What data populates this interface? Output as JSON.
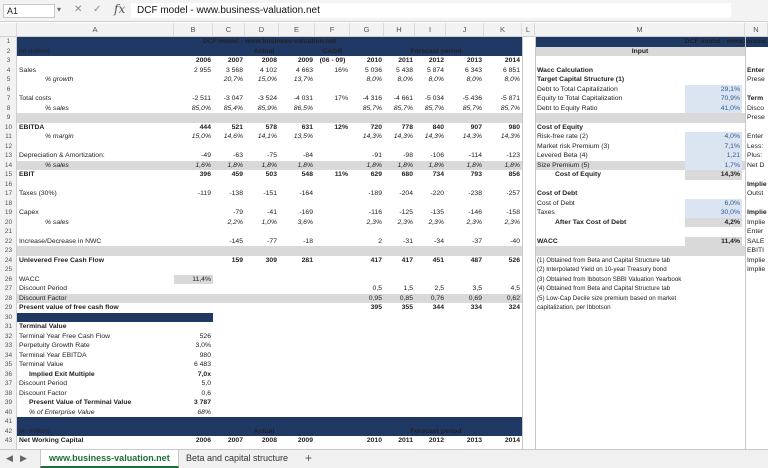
{
  "formula_bar": {
    "cell_ref": "A1",
    "formula": "DCF model - www.business-valuation.net"
  },
  "columns": [
    "A",
    "B",
    "C",
    "D",
    "E",
    "F",
    "G",
    "H",
    "I",
    "J",
    "K",
    "L",
    "M",
    "N"
  ],
  "rows": [
    "1",
    "2",
    "3",
    "4",
    "5",
    "6",
    "7",
    "8",
    "9",
    "10",
    "11",
    "12",
    "13",
    "14",
    "15",
    "16",
    "17",
    "18",
    "19",
    "20",
    "21",
    "22",
    "23",
    "24",
    "25",
    "26",
    "27",
    "28",
    "29",
    "30",
    "31",
    "32",
    "33",
    "34",
    "35",
    "36",
    "37",
    "38",
    "39",
    "40",
    "41",
    "42",
    "43"
  ],
  "header": {
    "title": "DCF model - www.business-valuation.net",
    "in_million": "(in million)",
    "actual": "Actual",
    "cagr": "CAGR",
    "cagr_range": "(06 - 09)",
    "forecast": "Forecast period",
    "years": [
      "2006",
      "2007",
      "2008",
      "2009",
      "",
      "2010",
      "2011",
      "2012",
      "2013",
      "2014"
    ]
  },
  "right_panel": {
    "title": "DCF model - www.busine",
    "input": "Input",
    "wacc_calc": "Wacc Calculation",
    "target_cap": "Target Capital Structure (1)",
    "debt_total": "Debt to Total Capitalization",
    "debt_total_v": "29,1%",
    "equity_total": "Equity to Total Capitalization",
    "equity_total_v": "70,9%",
    "debt_equity": "Debt to Equity Ratio",
    "debt_equity_v": "41,0%",
    "cost_equity": "Cost of Equity",
    "rf": "Risk-free rate (2)",
    "rf_v": "4,0%",
    "mrp": "Market risk Premium (3)",
    "mrp_v": "7,1%",
    "beta": "Levered Beta (4)",
    "beta_v": "1,21",
    "size": "Size Premium (5)",
    "size_v": "1,7%",
    "coe": "Cost of Equity",
    "coe_v": "14,3%",
    "cost_debt": "Cost of Debt",
    "cod": "Cost of Debt",
    "cod_v": "6,0%",
    "taxes": "Taxes",
    "taxes_v": "30,0%",
    "atcod": "After Tax Cost of Debt",
    "atcod_v": "4,2%",
    "wacc": "WACC",
    "wacc_v": "11,4%",
    "notes": [
      "(1) Obtained from Beta and Capital Structure tab",
      "(2) Interpolated Yield on 10-year Treasury bond",
      "(3) Obtained from Ibbotson SBBI Valuation Yearbook",
      "(4) Obtained from Beta and Capital Structure tab",
      "(5) Low-Cap Decile size premium based on market",
      "capitalization, per Ibbotson"
    ],
    "clipped": [
      "Enter",
      "Prese",
      "Term",
      "Disco",
      "Prese",
      "Enter",
      "Less:",
      "Plus:",
      "Net D",
      "Implie",
      "Outst",
      "Implie",
      "Implie",
      "Enter",
      "SALE",
      "EBITI",
      "Implie",
      "Implie"
    ]
  },
  "main_rows": [
    {
      "r": 4,
      "label": "Sales",
      "v": [
        "2 955",
        "3 568",
        "4 102",
        "4 663",
        "16%",
        "5 036",
        "5 438",
        "5 874",
        "6 343",
        "6 851"
      ]
    },
    {
      "r": 5,
      "label": "% growth",
      "ital": true,
      "v": [
        "",
        "20,7%",
        "15,0%",
        "13,7%",
        "",
        "8,0%",
        "8,0%",
        "8,0%",
        "8,0%",
        "8,0%"
      ]
    },
    {
      "r": 7,
      "label": "Total costs",
      "v": [
        "-2 511",
        "-3 047",
        "-3 524",
        "-4 031",
        "17%",
        "-4 316",
        "-4 661",
        "-5 034",
        "-5 436",
        "-5 871"
      ]
    },
    {
      "r": 8,
      "label": "% sales",
      "ital": true,
      "v": [
        "85,0%",
        "85,4%",
        "85,9%",
        "86,5%",
        "",
        "85,7%",
        "85,7%",
        "85,7%",
        "85,7%",
        "85,7%"
      ]
    },
    {
      "r": 10,
      "label": "EBITDA",
      "bold": true,
      "v": [
        "444",
        "521",
        "578",
        "631",
        "12%",
        "720",
        "778",
        "840",
        "907",
        "980"
      ]
    },
    {
      "r": 11,
      "label": "% margin",
      "ital": true,
      "v": [
        "15,0%",
        "14,6%",
        "14,1%",
        "13,5%",
        "",
        "14,3%",
        "14,3%",
        "14,3%",
        "14,3%",
        "14,3%"
      ]
    },
    {
      "r": 13,
      "label": "Depreciation & Amortization:",
      "v": [
        "-49",
        "-63",
        "-75",
        "-84",
        "",
        "-91",
        "-98",
        "-106",
        "-114",
        "-123"
      ]
    },
    {
      "r": 14,
      "label": "% sales",
      "ital": true,
      "v": [
        "1,6%",
        "1,8%",
        "1,8%",
        "1,8%",
        "",
        "1,8%",
        "1,8%",
        "1,8%",
        "1,8%",
        "1,8%"
      ]
    },
    {
      "r": 15,
      "label": "EBIT",
      "bold": true,
      "v": [
        "396",
        "459",
        "503",
        "548",
        "11%",
        "629",
        "680",
        "734",
        "793",
        "856"
      ]
    },
    {
      "r": 17,
      "label": "Taxes (30%)",
      "v": [
        "-119",
        "-138",
        "-151",
        "-164",
        "",
        "-189",
        "-204",
        "-220",
        "-238",
        "-257"
      ]
    },
    {
      "r": 19,
      "label": "Capex",
      "v": [
        "",
        "-79",
        "-41",
        "-169",
        "",
        "-116",
        "-125",
        "-135",
        "-146",
        "-158"
      ]
    },
    {
      "r": 20,
      "label": "% sales",
      "ital": true,
      "v": [
        "",
        "2,2%",
        "1,0%",
        "3,6%",
        "",
        "2,3%",
        "2,3%",
        "2,3%",
        "2,3%",
        "2,3%"
      ]
    },
    {
      "r": 22,
      "label": "Increase/Decrease in NWC",
      "v": [
        "",
        "-145",
        "-77",
        "-18",
        "",
        "2",
        "-31",
        "-34",
        "-37",
        "-40"
      ]
    },
    {
      "r": 24,
      "label": "Unlevered Free Cash Flow",
      "bold": true,
      "v": [
        "",
        "159",
        "309",
        "281",
        "",
        "417",
        "417",
        "451",
        "487",
        "526"
      ]
    },
    {
      "r": 26,
      "label": "WACC",
      "v": [
        "11,4%",
        "",
        "",
        "",
        "",
        "",
        "",
        "",
        "",
        ""
      ]
    },
    {
      "r": 27,
      "label": "Discount Period",
      "v": [
        "",
        "",
        "",
        "",
        "",
        "0,5",
        "1,5",
        "2,5",
        "3,5",
        "4,5"
      ]
    },
    {
      "r": 28,
      "label": "Discount Factor",
      "v": [
        "",
        "",
        "",
        "",
        "",
        "0,95",
        "0,85",
        "0,76",
        "0,69",
        "0,62"
      ]
    },
    {
      "r": 29,
      "label": "Present value of free cash flow",
      "bold": true,
      "v": [
        "",
        "",
        "",
        "",
        "",
        "395",
        "355",
        "344",
        "334",
        "324"
      ]
    }
  ],
  "terminal": {
    "title": "Terminal Value",
    "rows": [
      {
        "r": 32,
        "label": "Terminal Year Free Cash Flow",
        "v": "526"
      },
      {
        "r": 33,
        "label": "Perpetuity Growth Rate",
        "v": "3,0%"
      },
      {
        "r": 34,
        "label": "Terminal Year EBITDA",
        "v": "980"
      },
      {
        "r": 35,
        "label": "Terminal Value",
        "v": "6 483"
      },
      {
        "r": 36,
        "label": "Implied Exit Multiple",
        "v": "7,0x",
        "bold": true
      },
      {
        "r": 37,
        "label": "Discount Period",
        "v": "5,0"
      },
      {
        "r": 38,
        "label": "Discount Factor",
        "v": "0,6"
      },
      {
        "r": 39,
        "label": "Present Value of Terminal Value",
        "v": "3 787",
        "bold": true
      },
      {
        "r": 40,
        "label": "% of Enterprise Value",
        "v": "68%",
        "ital": true
      }
    ]
  },
  "nwc": {
    "in_million": "(in million)",
    "label": "Net Working Capital",
    "actual": "Actual",
    "forecast": "Forecast period"
  },
  "tabs": {
    "sheet1": "www.business-valuation.net",
    "sheet2": "Beta and capital structure",
    "add": "+"
  }
}
